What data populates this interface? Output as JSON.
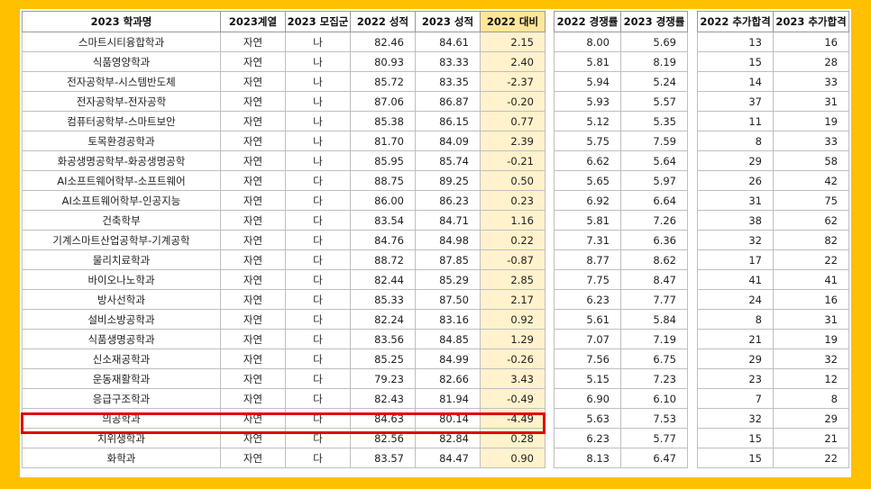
{
  "headers": [
    "2023 학과명",
    "2023계열",
    "2023 모집군",
    "2022 성적",
    "2023 성적",
    "2022 대비",
    "2022 경쟁률",
    "2023 경쟁률",
    "2022 추가합격",
    "2023 추가합격"
  ],
  "rows": [
    [
      "스마트시티융합학과",
      "자연",
      "나",
      "82.46",
      "84.61",
      "2.15",
      "8.00",
      "5.69",
      "13",
      "16"
    ],
    [
      "식품영양학과",
      "자연",
      "나",
      "80.93",
      "83.33",
      "2.40",
      "5.81",
      "8.19",
      "15",
      "28"
    ],
    [
      "전자공학부-시스템반도체",
      "자연",
      "나",
      "85.72",
      "83.35",
      "-2.37",
      "5.94",
      "5.24",
      "14",
      "33"
    ],
    [
      "전자공학부-전자공학",
      "자연",
      "나",
      "87.06",
      "86.87",
      "-0.20",
      "5.93",
      "5.57",
      "37",
      "31"
    ],
    [
      "컴퓨터공학부-스마트보안",
      "자연",
      "나",
      "85.38",
      "86.15",
      "0.77",
      "5.12",
      "5.35",
      "11",
      "19"
    ],
    [
      "토목환경공학과",
      "자연",
      "나",
      "81.70",
      "84.09",
      "2.39",
      "5.75",
      "7.59",
      "8",
      "33"
    ],
    [
      "화공생명공학부-화공생명공학",
      "자연",
      "나",
      "85.95",
      "85.74",
      "-0.21",
      "6.62",
      "5.64",
      "29",
      "58"
    ],
    [
      "AI소프트웨어학부-소프트웨어",
      "자연",
      "다",
      "88.75",
      "89.25",
      "0.50",
      "5.65",
      "5.97",
      "26",
      "42"
    ],
    [
      "AI소프트웨어학부-인공지능",
      "자연",
      "다",
      "86.00",
      "86.23",
      "0.23",
      "6.92",
      "6.64",
      "31",
      "75"
    ],
    [
      "건축학부",
      "자연",
      "다",
      "83.54",
      "84.71",
      "1.16",
      "5.81",
      "7.26",
      "38",
      "62"
    ],
    [
      "기계스마트산업공학부-기계공학",
      "자연",
      "다",
      "84.76",
      "84.98",
      "0.22",
      "7.31",
      "6.36",
      "32",
      "82"
    ],
    [
      "물리치료학과",
      "자연",
      "다",
      "88.72",
      "87.85",
      "-0.87",
      "8.77",
      "8.62",
      "17",
      "22"
    ],
    [
      "바이오나노학과",
      "자연",
      "다",
      "82.44",
      "85.29",
      "2.85",
      "7.75",
      "8.47",
      "41",
      "41"
    ],
    [
      "방사선학과",
      "자연",
      "다",
      "85.33",
      "87.50",
      "2.17",
      "6.23",
      "7.77",
      "24",
      "16"
    ],
    [
      "설비소방공학과",
      "자연",
      "다",
      "82.24",
      "83.16",
      "0.92",
      "5.61",
      "5.84",
      "8",
      "31"
    ],
    [
      "식품생명공학과",
      "자연",
      "다",
      "83.56",
      "84.85",
      "1.29",
      "7.07",
      "7.19",
      "21",
      "19"
    ],
    [
      "신소재공학과",
      "자연",
      "다",
      "85.25",
      "84.99",
      "-0.26",
      "7.56",
      "6.75",
      "29",
      "32"
    ],
    [
      "운동재활학과",
      "자연",
      "다",
      "79.23",
      "82.66",
      "3.43",
      "5.15",
      "7.23",
      "23",
      "12"
    ],
    [
      "응급구조학과",
      "자연",
      "다",
      "82.43",
      "81.94",
      "-0.49",
      "6.90",
      "6.10",
      "7",
      "8"
    ],
    [
      "의공학과",
      "자연",
      "다",
      "84.63",
      "80.14",
      "-4.49",
      "5.63",
      "7.53",
      "32",
      "29"
    ],
    [
      "치위생학과",
      "자연",
      "다",
      "82.56",
      "82.84",
      "0.28",
      "6.23",
      "5.77",
      "15",
      "21"
    ],
    [
      "화학과",
      "자연",
      "다",
      "83.57",
      "84.47",
      "0.90",
      "8.13",
      "6.47",
      "15",
      "22"
    ]
  ],
  "highlighted_row": 19,
  "colors": {
    "frame": "#FFC000",
    "diff_header": "#FFE699",
    "diff_cell": "#FFF2CC",
    "highlight_border": "#E00000"
  }
}
